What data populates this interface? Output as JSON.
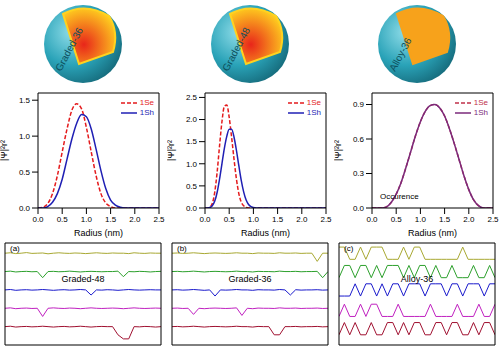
{
  "spheres": [
    {
      "label": "Graded-36",
      "colors": [
        "#e8261a",
        "#ffd21f"
      ]
    },
    {
      "label": "Graded-48",
      "colors": [
        "#e8261a",
        "#ffd21f"
      ]
    },
    {
      "label": "Alloy-36",
      "colors": [
        "#f7a21b",
        "#f7a21b"
      ]
    }
  ],
  "chart_data": [
    {
      "type": "line",
      "xlabel": "Radius (nm)",
      "ylabel": "|Ψ|²r²",
      "legend": "upper right",
      "x": [
        0,
        0.1,
        0.2,
        0.3,
        0.4,
        0.5,
        0.6,
        0.7,
        0.8,
        0.9,
        1.0,
        1.1,
        1.2,
        1.3,
        1.4,
        1.5,
        1.6,
        1.7,
        1.8,
        1.9,
        2.0,
        2.1,
        2.2,
        2.3,
        2.4,
        2.5
      ],
      "xlim": [
        0,
        2.5
      ],
      "xticks": [
        {
          "value": 0,
          "label": "0.0"
        },
        0.5,
        {
          "value": 1,
          "label": "1.0"
        },
        1.5,
        {
          "value": 2,
          "label": "2.0"
        },
        2.5
      ],
      "ylim": [
        0,
        1.6
      ],
      "yticks": [
        {
          "value": 0,
          "label": "0.0"
        },
        0.5,
        {
          "value": 1,
          "label": "1.0"
        },
        1.5
      ],
      "series": [
        {
          "name": "1Se",
          "color": "#e41a1c",
          "line_style": "dashed",
          "values": [
            0,
            0.01,
            0.06,
            0.2,
            0.45,
            0.78,
            1.1,
            1.36,
            1.45,
            1.38,
            1.12,
            0.78,
            0.45,
            0.2,
            0.07,
            0.02,
            0,
            0,
            0,
            0,
            0,
            0,
            0,
            0,
            0,
            0
          ]
        },
        {
          "name": "1Sh",
          "color": "#1f1fb4",
          "line_style": "solid",
          "values": [
            0,
            0,
            0.02,
            0.08,
            0.2,
            0.4,
            0.68,
            0.96,
            1.18,
            1.3,
            1.27,
            1.1,
            0.82,
            0.52,
            0.27,
            0.11,
            0.04,
            0.01,
            0,
            0,
            0,
            0,
            0,
            0,
            0,
            0
          ]
        }
      ]
    },
    {
      "type": "line",
      "xlabel": "Radius (nm)",
      "ylabel": "|Ψ|²r²",
      "legend": "upper right",
      "x": [
        0,
        0.05,
        0.1,
        0.15,
        0.2,
        0.25,
        0.3,
        0.35,
        0.4,
        0.45,
        0.5,
        0.55,
        0.6,
        0.65,
        0.7,
        0.75,
        0.8,
        0.85,
        0.9,
        0.95,
        1.0,
        1.05,
        1.1,
        1.15,
        1.2,
        1.3,
        1.4,
        1.5,
        1.6,
        1.7,
        1.8,
        1.9,
        2.0,
        2.1,
        2.2,
        2.3,
        2.4,
        2.5
      ],
      "xlim": [
        0,
        2.5
      ],
      "xticks": [
        {
          "value": 0,
          "label": "0.0"
        },
        0.5,
        {
          "value": 1,
          "label": "1.0"
        },
        1.5,
        {
          "value": 2,
          "label": "2.0"
        },
        2.5
      ],
      "ylim": [
        0,
        2.6
      ],
      "yticks": [
        {
          "value": 0,
          "label": "0.0"
        },
        0.5,
        {
          "value": 1,
          "label": "1.0"
        },
        1.5,
        {
          "value": 2,
          "label": "2.0"
        },
        2.5
      ],
      "series": [
        {
          "name": "1Se",
          "color": "#e41a1c",
          "line_style": "dashed",
          "values": [
            0,
            0,
            0.02,
            0.1,
            0.35,
            0.8,
            1.4,
            1.95,
            2.3,
            2.33,
            2.05,
            1.6,
            1.1,
            0.65,
            0.32,
            0.13,
            0.05,
            0.01,
            0,
            0,
            0,
            0,
            0,
            0,
            0,
            0,
            0,
            0,
            0,
            0,
            0,
            0,
            0,
            0,
            0,
            0,
            0,
            0
          ]
        },
        {
          "name": "1Sh",
          "color": "#1f1fb4",
          "line_style": "solid",
          "values": [
            0,
            0,
            0.01,
            0.05,
            0.15,
            0.35,
            0.65,
            1.0,
            1.35,
            1.62,
            1.78,
            1.78,
            1.6,
            1.3,
            0.95,
            0.62,
            0.36,
            0.18,
            0.08,
            0.03,
            0.01,
            0,
            0,
            0,
            0,
            0,
            0,
            0,
            0,
            0,
            0,
            0,
            0,
            0,
            0,
            0,
            0,
            0
          ]
        }
      ]
    },
    {
      "type": "line",
      "xlabel": "Radius (nm)",
      "ylabel": "|Ψ|²r²",
      "legend": "upper right",
      "annotations": [
        "Occurence"
      ],
      "x": [
        0,
        0.1,
        0.2,
        0.3,
        0.4,
        0.5,
        0.6,
        0.7,
        0.8,
        0.9,
        1.0,
        1.1,
        1.2,
        1.3,
        1.4,
        1.5,
        1.6,
        1.7,
        1.8,
        1.9,
        2.0,
        2.1,
        2.2,
        2.3,
        2.4,
        2.5
      ],
      "xlim": [
        0,
        2.5
      ],
      "xticks": [
        {
          "value": 0,
          "label": "0.0"
        },
        0.5,
        {
          "value": 1,
          "label": "1.0"
        },
        1.5,
        {
          "value": 2,
          "label": "2.0"
        },
        2.5
      ],
      "ylim": [
        0,
        1.0
      ],
      "yticks": [
        {
          "value": 0,
          "label": "0.0"
        },
        0.3,
        0.6,
        0.9
      ],
      "series": [
        {
          "name": "1Se",
          "color": "#c0304a",
          "line_style": "dashed",
          "values": [
            0,
            0,
            0,
            0.01,
            0.05,
            0.12,
            0.22,
            0.35,
            0.49,
            0.63,
            0.75,
            0.84,
            0.89,
            0.9,
            0.87,
            0.8,
            0.69,
            0.56,
            0.42,
            0.28,
            0.16,
            0.07,
            0.02,
            0,
            0,
            0
          ]
        },
        {
          "name": "1Sh",
          "color": "#7b2a7b",
          "line_style": "solid",
          "values": [
            0,
            0,
            0,
            0.01,
            0.05,
            0.12,
            0.22,
            0.35,
            0.49,
            0.63,
            0.75,
            0.84,
            0.89,
            0.9,
            0.87,
            0.8,
            0.69,
            0.56,
            0.42,
            0.28,
            0.16,
            0.07,
            0.02,
            0,
            0,
            0
          ]
        }
      ]
    },
    {
      "type": "line",
      "tick_labels": false,
      "annotations": [
        "(a)",
        "Graded-48"
      ],
      "x": [
        0,
        1,
        2,
        3,
        4,
        5,
        6,
        7,
        8,
        9,
        10,
        11,
        12,
        13,
        14,
        15,
        16,
        17,
        18,
        19,
        20,
        21,
        22,
        23,
        24,
        25,
        26,
        27,
        28,
        29
      ],
      "xlim": [
        0,
        29
      ],
      "ylim": [
        0,
        5
      ],
      "series": [
        {
          "color": "#a8a832",
          "values": [
            4.5,
            4.52,
            4.48,
            4.5,
            4.53,
            4.49,
            4.5,
            4.51,
            4.47,
            4.5,
            4.52,
            4.5,
            4.49,
            4.51,
            4.5,
            4.48,
            4.5,
            4.52,
            4.5,
            4.49,
            4.51,
            4.5,
            4.5,
            4.48,
            4.52,
            4.5,
            4.49,
            4.51,
            4.5,
            4.5
          ]
        },
        {
          "color": "#2ca02c",
          "values": [
            3.6,
            3.62,
            3.58,
            3.6,
            3.61,
            3.59,
            3.6,
            3.3,
            3.6,
            3.61,
            3.59,
            3.6,
            3.62,
            3.6,
            3.58,
            3.6,
            3.61,
            3.6,
            3.59,
            3.6,
            3.6,
            3.62,
            3.35,
            3.6,
            3.59,
            3.61,
            3.6,
            3.58,
            3.6,
            3.61
          ]
        },
        {
          "color": "#1a1acc",
          "values": [
            2.7,
            2.72,
            2.68,
            2.7,
            2.71,
            2.69,
            2.7,
            2.72,
            2.7,
            2.68,
            2.7,
            2.71,
            2.69,
            2.7,
            2.72,
            2.7,
            2.45,
            2.7,
            2.69,
            2.71,
            2.7,
            2.68,
            2.7,
            2.72,
            2.7,
            2.69,
            2.7,
            2.71,
            2.7,
            2.7
          ]
        },
        {
          "color": "#c020c0",
          "values": [
            1.8,
            1.82,
            1.78,
            1.8,
            1.81,
            1.79,
            1.8,
            1.4,
            1.8,
            1.82,
            1.8,
            1.79,
            1.81,
            1.8,
            1.78,
            1.8,
            1.82,
            1.8,
            1.79,
            1.8,
            1.81,
            1.8,
            1.78,
            1.8,
            1.82,
            1.8,
            1.79,
            1.8,
            1.81,
            1.8
          ]
        },
        {
          "color": "#a01030",
          "values": [
            0.9,
            0.92,
            0.88,
            0.9,
            0.91,
            0.89,
            0.9,
            0.92,
            0.9,
            0.88,
            0.9,
            0.91,
            0.89,
            0.9,
            0.92,
            0.9,
            0.88,
            0.9,
            0.91,
            0.9,
            0.9,
            0.5,
            0.3,
            0.3,
            0.9,
            0.89,
            0.91,
            0.9,
            0.88,
            0.9
          ]
        }
      ]
    },
    {
      "type": "line",
      "tick_labels": false,
      "annotations": [
        "(b)",
        "Graded-36"
      ],
      "x": [
        0,
        1,
        2,
        3,
        4,
        5,
        6,
        7,
        8,
        9,
        10,
        11,
        12,
        13,
        14,
        15,
        16,
        17,
        18,
        19,
        20,
        21,
        22,
        23,
        24,
        25,
        26,
        27,
        28,
        29
      ],
      "xlim": [
        0,
        29
      ],
      "ylim": [
        0,
        5
      ],
      "series": [
        {
          "color": "#a8a832",
          "values": [
            4.5,
            4.51,
            4.49,
            4.5,
            4.52,
            4.5,
            4.48,
            4.5,
            4.51,
            4.5,
            4.49,
            4.5,
            4.52,
            4.5,
            4.5,
            4.48,
            4.51,
            4.5,
            4.5,
            4.49,
            4.52,
            4.5,
            4.5,
            4.51,
            4.49,
            4.5,
            4.5,
            4.1,
            4.5,
            4.5
          ]
        },
        {
          "color": "#2ca02c",
          "values": [
            3.6,
            3.61,
            3.59,
            3.6,
            3.62,
            3.6,
            3.58,
            3.6,
            3.61,
            3.6,
            3.59,
            3.6,
            3.62,
            3.6,
            3.6,
            3.58,
            3.61,
            3.6,
            3.6,
            3.59,
            3.62,
            3.6,
            3.6,
            3.61,
            3.59,
            3.6,
            3.6,
            3.61,
            3.3,
            3.6
          ]
        },
        {
          "color": "#1a1acc",
          "values": [
            2.7,
            2.71,
            2.69,
            2.7,
            2.72,
            2.7,
            2.68,
            2.7,
            2.4,
            2.7,
            2.69,
            2.7,
            2.72,
            2.7,
            2.7,
            2.68,
            2.71,
            2.7,
            2.7,
            2.69,
            2.72,
            2.7,
            2.45,
            2.71,
            2.69,
            2.7,
            2.7,
            2.71,
            2.69,
            2.7
          ]
        },
        {
          "color": "#c020c0",
          "values": [
            1.8,
            1.81,
            1.79,
            1.8,
            1.5,
            1.8,
            1.78,
            1.8,
            1.81,
            1.8,
            1.79,
            1.8,
            1.82,
            1.45,
            1.8,
            1.78,
            1.81,
            1.8,
            1.8,
            1.79,
            1.82,
            1.8,
            1.8,
            1.81,
            1.79,
            1.8,
            1.8,
            1.81,
            1.79,
            1.8
          ]
        },
        {
          "color": "#a01030",
          "values": [
            0.9,
            0.91,
            0.89,
            0.9,
            0.92,
            0.9,
            0.88,
            0.9,
            0.91,
            0.9,
            0.89,
            0.9,
            0.92,
            0.9,
            0.9,
            0.88,
            0.91,
            0.9,
            0.9,
            0.5,
            0.5,
            0.9,
            0.9,
            0.91,
            0.89,
            0.9,
            0.9,
            0.91,
            0.89,
            0.9
          ]
        }
      ]
    },
    {
      "type": "line",
      "tick_labels": false,
      "annotations": [
        "(c)",
        "Alloy-36"
      ],
      "x": [
        0,
        1,
        2,
        3,
        4,
        5,
        6,
        7,
        8,
        9,
        10,
        11,
        12,
        13,
        14,
        15,
        16,
        17,
        18,
        19,
        20,
        21,
        22,
        23,
        24,
        25,
        26,
        27,
        28,
        29
      ],
      "xlim": [
        0,
        29
      ],
      "ylim": [
        0,
        5
      ],
      "series": [
        {
          "color": "#a8a832",
          "values": [
            4.8,
            4.8,
            4.2,
            4.2,
            4.8,
            4.2,
            4.8,
            4.8,
            4.8,
            4.2,
            4.2,
            4.2,
            4.8,
            4.2,
            4.8,
            4.8,
            4.2,
            4.2,
            4.2,
            4.2,
            4.2,
            4.2,
            4.2,
            4.8,
            4.2,
            4.2,
            4.2,
            4.2,
            4.2,
            4.2
          ]
        },
        {
          "color": "#2ca02c",
          "values": [
            3.3,
            3.9,
            3.9,
            3.3,
            3.9,
            3.9,
            3.3,
            3.9,
            3.3,
            3.9,
            3.9,
            3.9,
            3.3,
            3.9,
            3.3,
            3.9,
            3.9,
            3.3,
            3.9,
            3.3,
            3.3,
            3.9,
            3.3,
            3.3,
            3.3,
            3.9,
            3.3,
            3.3,
            3.9,
            3.3
          ]
        },
        {
          "color": "#1a1acc",
          "values": [
            2.4,
            2.4,
            2.4,
            3.0,
            2.4,
            3.0,
            3.0,
            2.4,
            3.0,
            2.4,
            3.0,
            3.0,
            2.4,
            3.0,
            3.0,
            3.0,
            2.4,
            3.0,
            3.0,
            3.0,
            2.4,
            3.0,
            3.0,
            2.4,
            3.0,
            3.0,
            3.0,
            2.4,
            3.0,
            3.0
          ]
        },
        {
          "color": "#c020c0",
          "values": [
            1.4,
            2.0,
            1.4,
            1.4,
            2.0,
            1.4,
            2.0,
            2.0,
            1.4,
            1.4,
            1.4,
            2.0,
            1.4,
            1.4,
            1.4,
            1.4,
            1.4,
            2.0,
            1.4,
            1.4,
            1.4,
            1.4,
            2.0,
            1.4,
            1.4,
            1.4,
            2.0,
            1.4,
            1.4,
            2.0
          ]
        },
        {
          "color": "#a01030",
          "values": [
            0.5,
            1.1,
            0.5,
            1.1,
            0.5,
            0.5,
            1.1,
            0.5,
            0.5,
            1.1,
            1.1,
            0.5,
            1.1,
            0.5,
            1.1,
            1.1,
            0.5,
            0.5,
            1.1,
            1.1,
            0.5,
            1.1,
            1.1,
            0.5,
            0.5,
            1.1,
            0.5,
            1.1,
            1.1,
            0.5
          ]
        }
      ]
    }
  ]
}
